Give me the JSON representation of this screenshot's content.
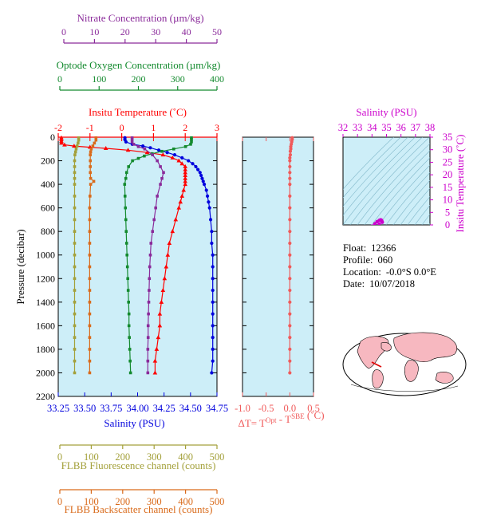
{
  "colors": {
    "panel_bg": "#cdeef8",
    "temperature": "#ff0000",
    "salinity": "#0000dd",
    "nitrate": "#8a2a9a",
    "oxygen": "#138a2e",
    "fluorescence": "#a3a03a",
    "backscatter": "#d96a1a",
    "delta_t": "#f05a5a",
    "ts_axis": "#cc00cc",
    "land": "#f7b8c0",
    "ocean": "#ffffff"
  },
  "info": {
    "float_label": "Float:",
    "float_value": "12366",
    "profile_label": "Profile:",
    "profile_value": "060",
    "location_label": "Location:",
    "location_value": "-0.0°S   0.0°E",
    "date_label": "Date:",
    "date_value": "10/07/2018"
  },
  "chart_data": [
    {
      "type": "line",
      "panel": "main-profile",
      "ylabel": "Pressure (decibar)",
      "ylim": [
        0,
        2200
      ],
      "yticks": [
        0,
        200,
        400,
        600,
        800,
        1000,
        1200,
        1400,
        1600,
        1800,
        2000,
        2200
      ],
      "y_inverted": true,
      "grid": false,
      "axes": {
        "temperature": {
          "label": "Insitu Temperature (˚C)",
          "position": "top",
          "range": [
            -2,
            3
          ],
          "ticks": [
            -2,
            -1,
            0,
            1,
            2,
            3
          ],
          "tick_labels": [
            "-2",
            "-1",
            "0",
            "1",
            "2",
            "3"
          ],
          "color": "#ff0000"
        },
        "oxygen": {
          "label": "Optode Oxygen Concentration (µm/kg)",
          "position": "top-offset",
          "range": [
            0,
            400
          ],
          "ticks": [
            0,
            100,
            200,
            300,
            400
          ],
          "tick_labels": [
            "0",
            "100",
            "200",
            "300",
            "400"
          ],
          "color": "#138a2e"
        },
        "nitrate": {
          "label": "Nitrate Concentration (µm/kg)",
          "position": "top-offset",
          "range": [
            0,
            50
          ],
          "ticks": [
            0,
            10,
            20,
            30,
            40,
            50
          ],
          "tick_labels": [
            "0",
            "10",
            "20",
            "30",
            "40",
            "50"
          ],
          "color": "#8a2a9a"
        },
        "salinity": {
          "label": "Salinity (PSU)",
          "position": "bottom",
          "range": [
            33.25,
            34.75
          ],
          "ticks": [
            33.25,
            33.5,
            33.75,
            34.0,
            34.25,
            34.5,
            34.75
          ],
          "tick_labels": [
            "33.25",
            "33.50",
            "33.75",
            "34.00",
            "34.25",
            "34.50",
            "34.75"
          ],
          "color": "#0000dd"
        },
        "fluorescence": {
          "label": "FLBB Fluorescence channel (counts)",
          "position": "bottom-offset",
          "range": [
            0,
            500
          ],
          "ticks": [
            0,
            100,
            200,
            300,
            400,
            500
          ],
          "tick_labels": [
            "0",
            "100",
            "200",
            "300",
            "400",
            "500"
          ],
          "color": "#a3a03a"
        },
        "backscatter": {
          "label": "FLBB Backscatter channel (counts)",
          "position": "bottom-offset",
          "range": [
            0,
            500
          ],
          "ticks": [
            0,
            100,
            200,
            300,
            400,
            500
          ],
          "tick_labels": [
            "0",
            "100",
            "200",
            "300",
            "400",
            "500"
          ],
          "color": "#d96a1a"
        }
      },
      "series": [
        {
          "axis": "temperature",
          "marker": "triangle",
          "pressure": [
            5,
            20,
            35,
            50,
            65,
            75,
            85,
            95,
            110,
            130,
            150,
            175,
            200,
            225,
            250,
            275,
            300,
            325,
            350,
            375,
            400,
            450,
            500,
            550,
            600,
            700,
            800,
            900,
            1000,
            1100,
            1200,
            1300,
            1400,
            1500,
            1600,
            1700,
            1800,
            1900,
            2000
          ],
          "values": [
            -1.9,
            -1.9,
            -1.9,
            -1.9,
            -1.8,
            -1.5,
            -1.0,
            -0.5,
            0.2,
            0.8,
            1.3,
            1.6,
            1.8,
            1.9,
            2.0,
            2.0,
            2.0,
            2.0,
            2.0,
            2.0,
            2.0,
            1.95,
            1.9,
            1.85,
            1.8,
            1.7,
            1.6,
            1.5,
            1.45,
            1.4,
            1.35,
            1.3,
            1.25,
            1.2,
            1.2,
            1.15,
            1.1,
            1.05,
            1.05
          ]
        },
        {
          "axis": "salinity",
          "marker": "circle",
          "pressure": [
            5,
            20,
            40,
            60,
            75,
            90,
            110,
            130,
            150,
            175,
            200,
            225,
            250,
            275,
            300,
            325,
            350,
            375,
            400,
            450,
            500,
            550,
            600,
            700,
            800,
            900,
            1000,
            1100,
            1200,
            1300,
            1400,
            1500,
            1600,
            1700,
            1800,
            1900,
            2000
          ],
          "values": [
            33.88,
            33.88,
            33.89,
            33.95,
            34.05,
            34.12,
            34.2,
            34.28,
            34.35,
            34.42,
            34.48,
            34.52,
            34.55,
            34.57,
            34.59,
            34.6,
            34.61,
            34.62,
            34.63,
            34.65,
            34.66,
            34.67,
            34.68,
            34.69,
            34.7,
            34.7,
            34.71,
            34.71,
            34.71,
            34.71,
            34.71,
            34.71,
            34.71,
            34.71,
            34.71,
            34.71,
            34.7
          ]
        },
        {
          "axis": "oxygen",
          "marker": "square",
          "pressure": [
            5,
            20,
            40,
            60,
            80,
            100,
            120,
            140,
            160,
            180,
            200,
            250,
            300,
            350,
            400,
            500,
            600,
            700,
            800,
            900,
            1000,
            1100,
            1200,
            1300,
            1400,
            1500,
            1600,
            1700,
            1800,
            1900,
            2000
          ],
          "values": [
            335,
            335,
            335,
            333,
            320,
            290,
            260,
            235,
            215,
            200,
            185,
            175,
            170,
            168,
            165,
            166,
            167,
            168,
            169,
            170,
            171,
            172,
            173,
            174,
            175,
            176,
            176,
            177,
            178,
            179,
            180
          ]
        },
        {
          "axis": "nitrate",
          "marker": "square",
          "pressure": [
            5,
            20,
            40,
            60,
            80,
            100,
            150,
            200,
            250,
            300,
            350,
            400,
            500,
            600,
            700,
            800,
            900,
            1000,
            1100,
            1200,
            1300,
            1400,
            1500,
            1600,
            1700,
            1800,
            1900,
            2000
          ],
          "values": [
            23,
            23,
            23,
            23.5,
            25,
            27,
            29.5,
            31,
            32,
            33,
            32.5,
            32,
            31,
            30.5,
            30,
            29.5,
            29,
            28.8,
            28.6,
            28.5,
            28.4,
            28.3,
            28.2,
            28.1,
            28.1,
            28.0,
            28.0,
            28.0
          ]
        },
        {
          "axis": "fluorescence",
          "marker": "square",
          "pressure": [
            5,
            25,
            50,
            75,
            100,
            125,
            150,
            200,
            250,
            300,
            350,
            400,
            500,
            600,
            700,
            800,
            900,
            1000,
            1100,
            1200,
            1300,
            1400,
            1500,
            1600,
            1700,
            1800,
            1900,
            2000
          ],
          "values": [
            60,
            60,
            58,
            55,
            52,
            50,
            48,
            47,
            47,
            47,
            47,
            47,
            47,
            47,
            47,
            47,
            47,
            47,
            47,
            47,
            47,
            47,
            47,
            47,
            47,
            47,
            47,
            47
          ]
        },
        {
          "axis": "backscatter",
          "marker": "square",
          "pressure": [
            5,
            25,
            50,
            75,
            100,
            125,
            150,
            200,
            250,
            300,
            350,
            375,
            400,
            500,
            600,
            700,
            800,
            900,
            1000,
            1100,
            1200,
            1300,
            1400,
            1500,
            1600,
            1700,
            1800,
            1900,
            2000
          ],
          "values": [
            115,
            115,
            110,
            105,
            100,
            98,
            97,
            97,
            97,
            97,
            98,
            108,
            98,
            96,
            95,
            95,
            95,
            95,
            95,
            95,
            95,
            95,
            95,
            95,
            95,
            95,
            95,
            95,
            95
          ]
        }
      ]
    },
    {
      "type": "scatter",
      "panel": "delta-t",
      "xlabel": "ΔT= T^Opt - T^SBE (˚C)",
      "xlabel_parts": {
        "pre": "ΔT= T",
        "sup1": "Opt",
        "mid": " - T",
        "sup2": "SBE",
        "post": " (˚C)"
      },
      "xlim": [
        -1.0,
        0.5
      ],
      "xticks": [
        -1.0,
        -0.5,
        0.0,
        0.5
      ],
      "xtick_labels": [
        "-1.0",
        "-0.5",
        "0.0",
        "0.5"
      ],
      "ylim": [
        0,
        2200
      ],
      "y_inverted": true,
      "pressure": [
        5,
        20,
        40,
        60,
        80,
        100,
        120,
        150,
        175,
        200,
        250,
        300,
        350,
        400,
        500,
        600,
        700,
        800,
        900,
        1000,
        1100,
        1200,
        1300,
        1400,
        1500,
        1600,
        1700,
        1800,
        1900,
        2000
      ],
      "values": [
        0.05,
        0.05,
        0.04,
        0.03,
        0.02,
        0.02,
        0.01,
        0.01,
        0.0,
        0.0,
        0.0,
        0.0,
        0.0,
        0.0,
        0.0,
        0.0,
        0.0,
        0.0,
        0.0,
        0.0,
        0.0,
        0.0,
        0.0,
        0.0,
        0.0,
        0.0,
        0.0,
        0.0,
        0.0,
        0.0
      ]
    },
    {
      "type": "scatter",
      "panel": "ts-diagram",
      "xlabel": "Salinity (PSU)",
      "ylabel": "Insitu Temperature (˚C)",
      "xlim": [
        32,
        38
      ],
      "ylim": [
        0,
        35
      ],
      "xticks": [
        32,
        33,
        34,
        35,
        36,
        37,
        38
      ],
      "xtick_labels": [
        "32",
        "33",
        "34",
        "35",
        "36",
        "37",
        "38"
      ],
      "yticks": [
        0,
        5,
        10,
        15,
        20,
        25,
        30,
        35
      ],
      "ytick_labels": [
        "0",
        "5",
        "10",
        "15",
        "20",
        "25",
        "30",
        "35"
      ],
      "x": [
        34.71,
        34.7,
        34.68,
        34.66,
        34.62,
        34.58,
        34.5,
        34.35,
        34.2,
        34.0,
        33.9,
        34.1,
        34.5
      ],
      "y": [
        1.05,
        1.2,
        1.5,
        1.8,
        2.0,
        2.0,
        1.8,
        1.3,
        0.5,
        -0.5,
        -1.8,
        -1.9,
        0.3
      ]
    }
  ]
}
